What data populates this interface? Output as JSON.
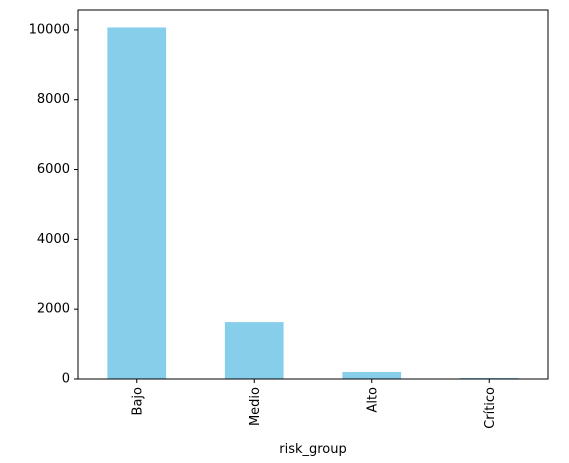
{
  "chart_data": {
    "type": "bar",
    "categories": [
      "Bajo",
      "Medio",
      "Alto",
      "Crítico"
    ],
    "values": [
      10070,
      1630,
      200,
      30
    ],
    "title": "",
    "xlabel": "risk_group",
    "ylabel": "",
    "ylim": [
      0,
      10570
    ],
    "yticks": [
      0,
      2000,
      4000,
      6000,
      8000,
      10000
    ],
    "grid": false,
    "legend": "none",
    "bar_color": "#87ceeb",
    "axis_color": "#000000"
  }
}
